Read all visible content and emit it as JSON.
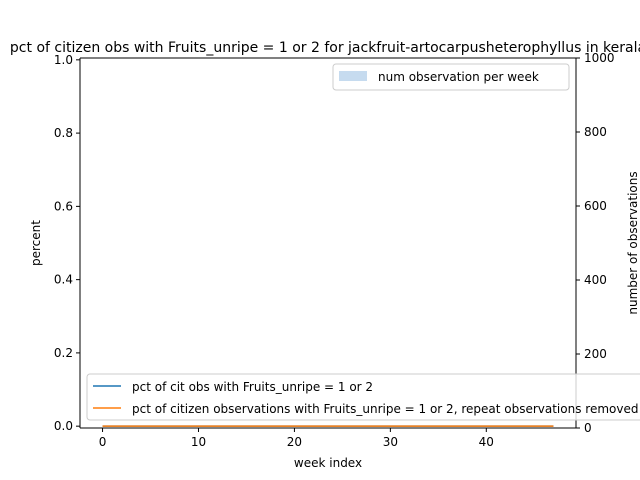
{
  "chart_data": {
    "type": "line",
    "title": "pct of citizen obs with Fruits_unripe = 1 or 2 for jackfruit-artocarpusheterophyllus in kerala",
    "xlabel": "week index",
    "ylabel": "percent",
    "y2label": "number of observations",
    "xlim": [
      -2.35,
      49.35
    ],
    "ylim": [
      -0.005,
      1.005
    ],
    "y2lim": [
      0,
      1000
    ],
    "x_ticks": [
      "0",
      "10",
      "20",
      "30",
      "40"
    ],
    "y_ticks": [
      "0.0",
      "0.2",
      "0.4",
      "0.6",
      "0.8",
      "1.0"
    ],
    "y2_ticks": [
      "0",
      "200",
      "400",
      "600",
      "800",
      "1000"
    ],
    "bars": {
      "name": "num observation per week",
      "color": "#c6dbef",
      "x": [
        0,
        47
      ],
      "values": [
        0,
        0
      ]
    },
    "series": [
      {
        "name": "pct of cit obs with Fruits_unripe = 1 or 2",
        "color": "#1f77b4",
        "x": [
          0,
          47
        ],
        "values": [
          0,
          0
        ]
      },
      {
        "name": "pct of citizen observations with Fruits_unripe = 1 or 2, repeat observations removed",
        "color": "#ff7f0e",
        "x": [
          0,
          47
        ],
        "values": [
          0,
          0
        ]
      }
    ],
    "legend_upper": "top-right",
    "legend_lower": "bottom-left",
    "grid": false
  }
}
